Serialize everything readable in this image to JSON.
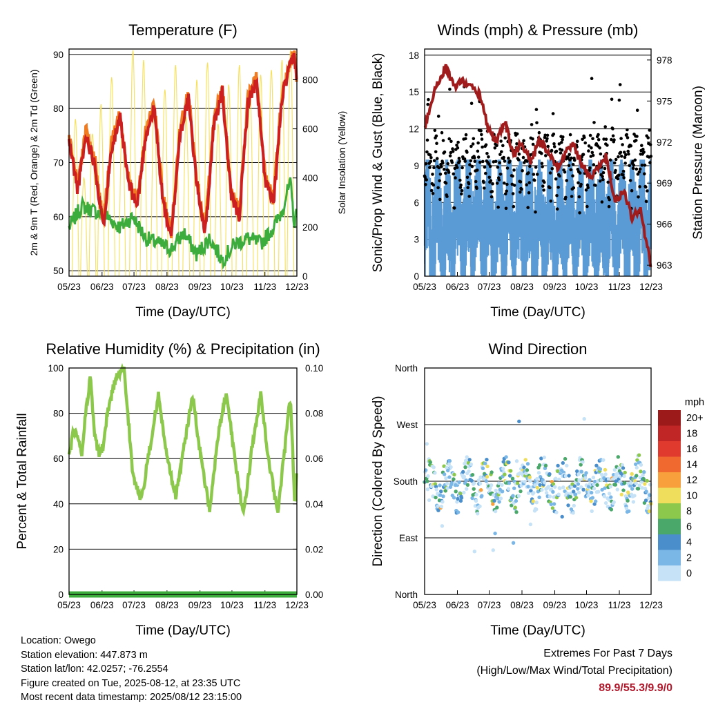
{
  "footer": {
    "location": "Location: Owego",
    "elevation": "Station elevation: 447.873 m",
    "latlon": "Station lat/lon: 42.0257; -76.2554",
    "created": "Figure created on Tue, 2025-08-12, at 23:35 UTC",
    "recent": "Most recent data timestamp: 2025/08/12 23:15:00",
    "extremes_title": "Extremes For Past 7 Days",
    "extremes_subtitle": "(High/Low/Max Wind/Total Precipitation)",
    "extremes_values": "89.9/55.3/9.9/0"
  },
  "colors": {
    "temp_2m": "#cc2020",
    "temp_9m": "#f07b20",
    "dewpoint": "#3cac3c",
    "solar": "#f6e05c",
    "wind": "#5b9bd5",
    "gust": "#000000",
    "pressure": "#a01c1c",
    "humidity": "#8cc84b",
    "precip": "#3cac3c",
    "extremes": "#b2182b"
  },
  "chart_data": [
    {
      "id": "temperature",
      "type": "line",
      "title": "Temperature (F)",
      "xlabel": "Time (Day/UTC)",
      "ylabel": "2m & 9m T (Red, Orange) & 2m Td (Green)",
      "y2label": "Solar Insolation (Yellow)",
      "x_ticks": [
        "05/23",
        "06/23",
        "07/23",
        "08/23",
        "09/23",
        "10/23",
        "11/23",
        "12/23"
      ],
      "ylim": [
        49,
        91
      ],
      "y_ticks": [
        50,
        60,
        70,
        80,
        90
      ],
      "y2lim": [
        0,
        925
      ],
      "y2_ticks": [
        0,
        200,
        400,
        600,
        800
      ],
      "grid_y": [
        50,
        60,
        70,
        80,
        90
      ],
      "series": [
        {
          "name": "2m T",
          "color": "#cc2020",
          "x_day": [
            0,
            4,
            8,
            12,
            16,
            20,
            24,
            28,
            32,
            36,
            40,
            44,
            48,
            52,
            56,
            60,
            64,
            68,
            72,
            76,
            80,
            84,
            88,
            92,
            96,
            100,
            104,
            106,
            107
          ],
          "values": [
            74,
            65,
            75,
            70,
            58,
            73,
            78,
            66,
            62,
            75,
            80,
            63,
            56,
            75,
            82,
            66,
            57,
            77,
            83,
            64,
            60,
            81,
            85,
            67,
            62,
            82,
            88,
            90,
            84
          ]
        },
        {
          "name": "9m T",
          "color": "#f07b20",
          "x_day": [
            0,
            4,
            8,
            12,
            16,
            20,
            24,
            28,
            32,
            36,
            40,
            44,
            48,
            52,
            56,
            60,
            64,
            68,
            72,
            76,
            80,
            84,
            88,
            92,
            96,
            100,
            104,
            106,
            107
          ],
          "values": [
            75,
            66,
            76,
            71,
            59,
            74,
            79,
            67,
            63,
            76,
            81,
            64,
            57,
            76,
            83,
            67,
            58,
            78,
            84,
            65,
            61,
            82,
            86,
            68,
            63,
            83,
            89,
            90,
            85
          ]
        },
        {
          "name": "2m Td",
          "color": "#3cac3c",
          "x_day": [
            0,
            6,
            12,
            18,
            24,
            30,
            36,
            42,
            48,
            54,
            60,
            66,
            72,
            78,
            84,
            90,
            96,
            100,
            102,
            104,
            106,
            107
          ],
          "values": [
            58,
            62,
            61,
            60,
            58,
            60,
            56,
            55,
            54,
            57,
            53,
            56,
            52,
            55,
            56,
            55,
            58,
            61,
            64,
            66,
            58,
            62
          ]
        },
        {
          "name": "Solar Insolation",
          "color": "#f6e05c",
          "axis": "y2",
          "peaks_day": [
            3,
            7,
            11,
            15,
            20,
            25,
            30,
            35,
            40,
            45,
            50,
            55,
            60,
            65,
            70,
            75,
            80,
            85,
            90,
            95,
            100,
            104
          ],
          "peaks": [
            640,
            400,
            580,
            700,
            810,
            620,
            920,
            880,
            700,
            760,
            860,
            650,
            800,
            870,
            620,
            780,
            860,
            760,
            820,
            840,
            880,
            920
          ]
        }
      ]
    },
    {
      "id": "winds",
      "type": "scatter",
      "title": "Winds (mph) & Pressure (mb)",
      "xlabel": "Time (Day/UTC)",
      "ylabel": "Sonic/Prop Wind & Gust (Blue, Black)",
      "y2label": "Station Pressure (Maroon)",
      "x_ticks": [
        "05/23",
        "06/23",
        "07/23",
        "08/23",
        "09/23",
        "10/23",
        "11/23",
        "12/23"
      ],
      "ylim": [
        0,
        18.5
      ],
      "y_ticks": [
        0,
        3,
        6,
        9,
        12,
        15,
        18
      ],
      "y2lim": [
        962.2,
        978.8
      ],
      "y2_ticks": [
        963,
        966,
        969,
        972,
        975,
        978
      ],
      "grid_y": [
        3,
        6,
        9,
        12,
        15,
        18
      ],
      "series": [
        {
          "name": "Wind",
          "color": "#5b9bd5",
          "typical_range": [
            0,
            9.5
          ]
        },
        {
          "name": "Gust",
          "color": "#000000",
          "typical_range": [
            2,
            15.5
          ]
        },
        {
          "name": "Pressure",
          "color": "#a01c1c",
          "axis": "y2",
          "x_day": [
            0,
            5,
            10,
            14,
            18,
            22,
            26,
            30,
            34,
            38,
            42,
            46,
            50,
            54,
            58,
            62,
            66,
            70,
            74,
            78,
            82,
            86,
            90,
            94,
            98,
            102,
            105,
            107
          ],
          "values": [
            973,
            976,
            977.5,
            976,
            976.5,
            976,
            975.5,
            973,
            972,
            973.5,
            971,
            972,
            970.5,
            972,
            971.5,
            970,
            971,
            972,
            970.5,
            969.5,
            970,
            971,
            967.5,
            968.5,
            966.5,
            967,
            964.5,
            963
          ]
        }
      ]
    },
    {
      "id": "humidity",
      "type": "line",
      "title": "Relative Humidity (%) & Precipitation (in)",
      "xlabel": "Time (Day/UTC)",
      "ylabel": "Percent & Total Rainfall",
      "x_ticks": [
        "05/23",
        "06/23",
        "07/23",
        "08/23",
        "09/23",
        "10/23",
        "11/23",
        "12/23"
      ],
      "ylim": [
        0,
        100
      ],
      "y_ticks": [
        0,
        20,
        40,
        60,
        80,
        100
      ],
      "y2lim": [
        0,
        0.1
      ],
      "y2_ticks": [
        "0.00",
        "0.02",
        "0.04",
        "0.06",
        "0.08",
        "0.10"
      ],
      "grid_y": [
        20,
        40,
        60,
        80
      ],
      "series": [
        {
          "name": "RH",
          "color": "#8cc84b",
          "x_day": [
            0,
            2,
            4,
            6,
            8,
            10,
            12,
            14,
            16,
            18,
            22,
            26,
            30,
            34,
            38,
            42,
            46,
            50,
            54,
            58,
            62,
            66,
            70,
            74,
            78,
            82,
            86,
            90,
            94,
            98,
            102,
            104,
            106,
            107
          ],
          "values": [
            60,
            72,
            70,
            62,
            82,
            96,
            70,
            62,
            65,
            80,
            96,
            99,
            52,
            42,
            65,
            88,
            60,
            43,
            65,
            88,
            60,
            37,
            70,
            90,
            58,
            35,
            65,
            88,
            58,
            36,
            70,
            88,
            40,
            55
          ]
        },
        {
          "name": "Precipitation",
          "color": "#3cac3c",
          "axis": "y2",
          "values": [
            0,
            0
          ]
        }
      ]
    },
    {
      "id": "direction",
      "type": "scatter",
      "title": "Wind Direction",
      "xlabel": "Time (Day/UTC)",
      "ylabel": "Direction (Colored By Speed)",
      "x_ticks": [
        "05/23",
        "06/23",
        "07/23",
        "08/23",
        "09/23",
        "10/23",
        "11/23",
        "12/23"
      ],
      "ylim": [
        0,
        360
      ],
      "y_ticks": [
        "North",
        "East",
        "South",
        "West",
        "North"
      ],
      "grid_y": [
        90,
        180,
        270
      ],
      "typical_direction": 175,
      "colorbar": {
        "title": "mph",
        "labels": [
          "20+",
          "18",
          "16",
          "14",
          "12",
          "10",
          "8",
          "6",
          "4",
          "2",
          "0"
        ],
        "colors": [
          "#9c1a1a",
          "#c02626",
          "#e03a2e",
          "#f06a30",
          "#f7a03c",
          "#eede5c",
          "#8cc84b",
          "#4aa86a",
          "#4a8fcc",
          "#7ab6e6",
          "#c6e2f6"
        ]
      }
    }
  ]
}
